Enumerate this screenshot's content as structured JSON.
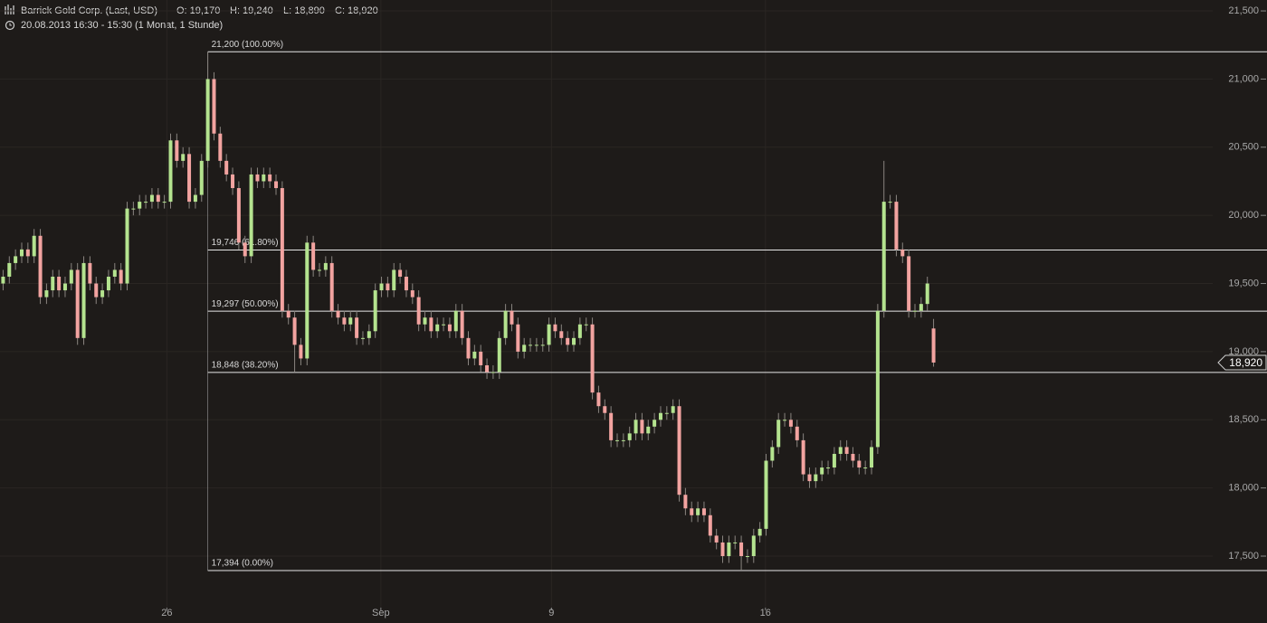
{
  "chart_data": {
    "type": "candlestick",
    "header": {
      "name": "Barrick Gold Corp. (Last, USD)",
      "ohlc": [
        "O: 19,170",
        "H: 19,240",
        "L: 18,890",
        "C: 18,920"
      ],
      "period": "20.08.2013 16:30 - 15:30 (1 Monat, 1 Stunde)"
    },
    "open": [
      19500,
      19550,
      19650,
      19700,
      19750,
      19700,
      19850,
      19400,
      19450,
      19550,
      19450,
      19500,
      19600,
      19100,
      19650,
      19500,
      19400,
      19450,
      19550,
      19600,
      19500,
      20050,
      20050,
      20100,
      20100,
      20150,
      20100,
      20100,
      20550,
      20400,
      20450,
      20100,
      20150,
      20400,
      21000,
      20600,
      20400,
      20300,
      20200,
      19800,
      19700,
      20300,
      20250,
      20300,
      20250,
      20200,
      19300,
      19250,
      19050,
      18950,
      19800,
      19600,
      19600,
      19650,
      19300,
      19250,
      19200,
      19250,
      19100,
      19100,
      19150,
      19450,
      19500,
      19450,
      19600,
      19550,
      19450,
      19400,
      19200,
      19250,
      19150,
      19200,
      19200,
      19150,
      19300,
      19100,
      18950,
      19000,
      18900,
      18850,
      18850,
      19100,
      19300,
      19200,
      19000,
      19050,
      19050,
      19050,
      19050,
      19200,
      19150,
      19100,
      19050,
      19100,
      19200,
      19200,
      18700,
      18600,
      18550,
      18350,
      18350,
      18350,
      18400,
      18500,
      18400,
      18450,
      18500,
      18550,
      18550,
      18600,
      17950,
      17850,
      17800,
      17850,
      17800,
      17650,
      17600,
      17500,
      17600,
      17600,
      17500,
      17500,
      17650,
      17700,
      18200,
      18300,
      18500,
      18500,
      18450,
      18350,
      18100,
      18050,
      18100,
      18150,
      18150,
      18250,
      18300,
      18250,
      18200,
      18150,
      18150,
      18300,
      19300,
      20100,
      20100,
      19750,
      19700,
      19300,
      19300,
      19350,
      19170
    ],
    "high": [
      19600,
      19700,
      19750,
      19800,
      19800,
      19900,
      19900,
      19500,
      19600,
      19600,
      19550,
      19650,
      19650,
      19700,
      19700,
      19550,
      19500,
      19600,
      19650,
      19650,
      20100,
      20100,
      20150,
      20150,
      20200,
      20200,
      20150,
      20600,
      20600,
      20500,
      20500,
      20200,
      20450,
      21200,
      21050,
      20650,
      20450,
      20350,
      20250,
      19850,
      20350,
      20350,
      20350,
      20350,
      20300,
      20250,
      19350,
      19300,
      19100,
      19850,
      19850,
      19650,
      19700,
      19700,
      19350,
      19300,
      19300,
      19300,
      19150,
      19200,
      19500,
      19550,
      19550,
      19650,
      19650,
      19600,
      19500,
      19450,
      19300,
      19300,
      19250,
      19250,
      19250,
      19350,
      19350,
      19150,
      19050,
      19050,
      18950,
      18900,
      19150,
      19350,
      19350,
      19250,
      19100,
      19100,
      19100,
      19100,
      19250,
      19250,
      19200,
      19150,
      19150,
      19250,
      19250,
      19250,
      18750,
      18650,
      18600,
      18400,
      18400,
      18450,
      18550,
      18550,
      18500,
      18550,
      18600,
      18600,
      18650,
      18650,
      18000,
      17900,
      17900,
      17900,
      17850,
      17700,
      17650,
      17650,
      17650,
      17650,
      17550,
      17700,
      17750,
      18250,
      18350,
      18550,
      18550,
      18550,
      18500,
      18400,
      18150,
      18150,
      18200,
      18200,
      18300,
      18350,
      18350,
      18300,
      18250,
      18200,
      18350,
      19350,
      20400,
      20150,
      20150,
      19800,
      19750,
      19350,
      19400,
      19550,
      19240
    ],
    "low": [
      19450,
      19500,
      19600,
      19650,
      19650,
      19650,
      19350,
      19350,
      19400,
      19400,
      19400,
      19450,
      19050,
      19050,
      19450,
      19350,
      19350,
      19400,
      19500,
      19450,
      19450,
      20000,
      20000,
      20050,
      20050,
      20050,
      20050,
      20050,
      20350,
      20350,
      20050,
      20050,
      20100,
      20350,
      20550,
      20350,
      20250,
      20150,
      19750,
      19650,
      19650,
      20200,
      20200,
      20200,
      20150,
      19250,
      19200,
      18848,
      18900,
      18900,
      19550,
      19550,
      19550,
      19250,
      19200,
      19150,
      19150,
      19050,
      19050,
      19050,
      19100,
      19400,
      19400,
      19400,
      19500,
      19400,
      19350,
      19150,
      19150,
      19100,
      19100,
      19150,
      19100,
      19100,
      19050,
      18900,
      18900,
      18850,
      18800,
      18800,
      18800,
      19050,
      19150,
      18950,
      18950,
      19000,
      19000,
      19000,
      19000,
      19100,
      19050,
      19000,
      19000,
      19050,
      19150,
      18650,
      18550,
      18500,
      18300,
      18300,
      18300,
      18300,
      18350,
      18350,
      18350,
      18400,
      18450,
      18500,
      18500,
      17900,
      17800,
      17750,
      17750,
      17750,
      17600,
      17550,
      17450,
      17450,
      17550,
      17394,
      17450,
      17450,
      17600,
      17650,
      18150,
      18250,
      18450,
      18400,
      18300,
      18050,
      18000,
      18000,
      18050,
      18100,
      18100,
      18200,
      18200,
      18150,
      18100,
      18100,
      18100,
      18250,
      19250,
      20050,
      19700,
      19650,
      19250,
      19250,
      19250,
      19300,
      18890
    ],
    "close": [
      19550,
      19650,
      19700,
      19750,
      19700,
      19850,
      19400,
      19450,
      19550,
      19450,
      19500,
      19600,
      19100,
      19650,
      19500,
      19400,
      19450,
      19550,
      19600,
      19500,
      20050,
      20050,
      20100,
      20100,
      20150,
      20100,
      20100,
      20550,
      20400,
      20450,
      20100,
      20150,
      20400,
      21000,
      20600,
      20400,
      20300,
      20200,
      19800,
      19700,
      20300,
      20250,
      20300,
      20250,
      20200,
      19300,
      19250,
      19050,
      18950,
      19800,
      19600,
      19600,
      19650,
      19300,
      19250,
      19200,
      19250,
      19100,
      19100,
      19150,
      19450,
      19500,
      19450,
      19600,
      19550,
      19450,
      19400,
      19200,
      19250,
      19150,
      19200,
      19200,
      19150,
      19300,
      19100,
      18950,
      19000,
      18900,
      18850,
      18850,
      19100,
      19300,
      19200,
      19000,
      19050,
      19050,
      19050,
      19050,
      19200,
      19150,
      19100,
      19050,
      19100,
      19200,
      19200,
      18700,
      18600,
      18550,
      18350,
      18350,
      18350,
      18400,
      18500,
      18400,
      18450,
      18500,
      18550,
      18550,
      18600,
      17950,
      17850,
      17800,
      17850,
      17800,
      17650,
      17600,
      17500,
      17600,
      17600,
      17500,
      17500,
      17650,
      17700,
      18200,
      18300,
      18500,
      18500,
      18450,
      18350,
      18100,
      18050,
      18100,
      18150,
      18150,
      18250,
      18300,
      18250,
      18200,
      18150,
      18150,
      18300,
      19300,
      20100,
      20100,
      19750,
      19700,
      19300,
      19300,
      19350,
      19500,
      18920
    ],
    "up_color": "#b4e38f",
    "down_color": "#f2a3a0",
    "xlim": [
      -0.5,
      195
    ],
    "xticks": [
      {
        "value": 26.4,
        "label": "26"
      },
      {
        "value": 60.9,
        "label": "Sep"
      },
      {
        "value": 88.4,
        "label": "9"
      },
      {
        "value": 122.9,
        "label": "16"
      }
    ],
    "ylim": [
      17122,
      21580
    ],
    "yticks": [
      {
        "value": 17500,
        "label": "17,500"
      },
      {
        "value": 18000,
        "label": "18,000"
      },
      {
        "value": 18500,
        "label": "18,500"
      },
      {
        "value": 19000,
        "label": "19,000"
      },
      {
        "value": 19500,
        "label": "19,500"
      },
      {
        "value": 20000,
        "label": "20,000"
      },
      {
        "value": 20500,
        "label": "20,500"
      },
      {
        "value": 21000,
        "label": "21,000"
      },
      {
        "value": 21500,
        "label": "21,500"
      }
    ],
    "fib_start": 33,
    "fib_levels": [
      {
        "value": 21200,
        "label": "21,200 (100.00%)"
      },
      {
        "value": 19746,
        "label": "19,746 (61.80%)"
      },
      {
        "value": 19297,
        "label": "19,297 (50.00%)"
      },
      {
        "value": 18848,
        "label": "18,848 (38.20%)"
      },
      {
        "value": 17394,
        "label": "17,394 (0.00%)"
      }
    ],
    "last_price": {
      "value": 18920,
      "label": "18,920"
    },
    "grid": true
  }
}
